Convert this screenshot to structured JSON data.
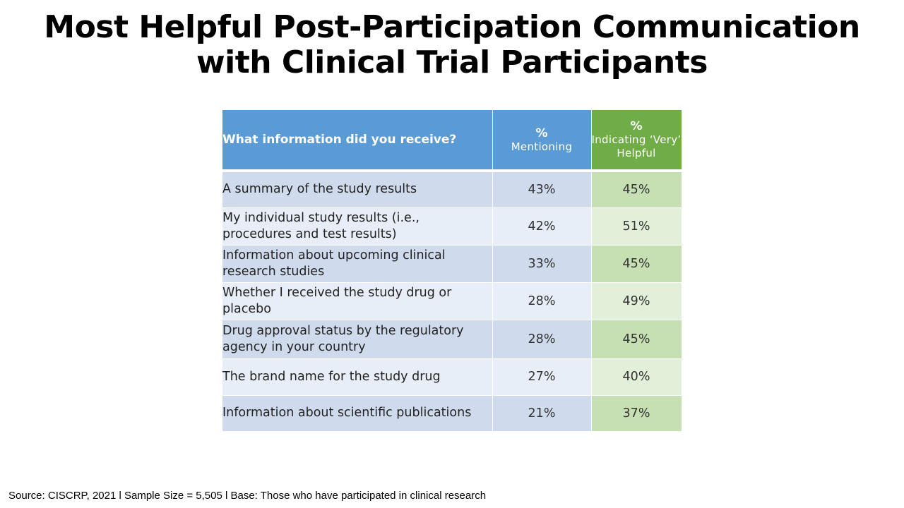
{
  "title_line1": "Most Helpful Post-Participation Communication",
  "title_line2": "with Clinical Trial Participants",
  "chart_data": {
    "type": "table",
    "columns": [
      {
        "label": "What information did you receive?"
      },
      {
        "symbol": "%",
        "label": "Mentioning"
      },
      {
        "symbol": "%",
        "label": "Indicating ‘Very’ Helpful"
      }
    ],
    "rows": [
      {
        "item": "A summary of the study results",
        "mentioning": "43%",
        "very_helpful": "45%"
      },
      {
        "item": "My individual study results (i.e., procedures and test results)",
        "mentioning": "42%",
        "very_helpful": "51%"
      },
      {
        "item": "Information about upcoming clinical research studies",
        "mentioning": "33%",
        "very_helpful": "45%"
      },
      {
        "item": "Whether I received the study drug or placebo",
        "mentioning": "28%",
        "very_helpful": "49%"
      },
      {
        "item": "Drug approval status by the regulatory agency in your country",
        "mentioning": "28%",
        "very_helpful": "45%"
      },
      {
        "item": "The brand name for the study drug",
        "mentioning": "27%",
        "very_helpful": "40%"
      },
      {
        "item": "Information about scientific publications",
        "mentioning": "21%",
        "very_helpful": "37%"
      }
    ]
  },
  "source": "Source: CISCRP, 2021 l Sample Size = 5,505 l Base: Those who have participated in clinical research",
  "colors": {
    "header_blue": "#5b9bd5",
    "header_green": "#70ad47"
  }
}
